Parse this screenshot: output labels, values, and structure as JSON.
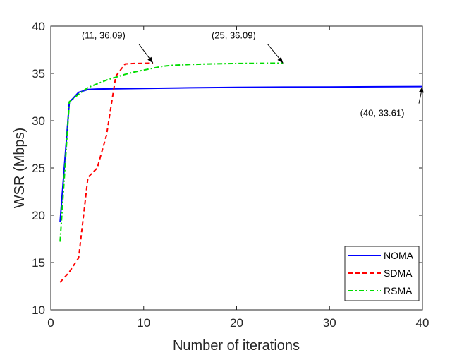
{
  "chart_data": {
    "type": "line",
    "title": "",
    "xlabel": "Number of iterations",
    "ylabel": "WSR (Mbps)",
    "xlim": [
      0,
      40
    ],
    "ylim": [
      10,
      40
    ],
    "xticks": [
      0,
      10,
      20,
      30,
      40
    ],
    "yticks": [
      10,
      15,
      20,
      25,
      30,
      35,
      40
    ],
    "grid": false,
    "legend_position": "bottom-right",
    "series": [
      {
        "name": "NOMA",
        "color": "#0000ff",
        "dash": "solid",
        "x": [
          1,
          2,
          3,
          4,
          5,
          10,
          15,
          20,
          25,
          30,
          35,
          40
        ],
        "y": [
          19.3,
          31.95,
          33.0,
          33.3,
          33.35,
          33.42,
          33.48,
          33.52,
          33.55,
          33.57,
          33.59,
          33.61
        ]
      },
      {
        "name": "SDMA",
        "color": "#ff0000",
        "dash": "dashed",
        "x": [
          1,
          2,
          3,
          4,
          5,
          6,
          7,
          8,
          9,
          10,
          11
        ],
        "y": [
          12.9,
          14.0,
          15.5,
          24.0,
          25.0,
          28.5,
          34.7,
          36.0,
          36.05,
          36.07,
          36.09
        ]
      },
      {
        "name": "RSMA",
        "color": "#00dd00",
        "dash": "dashdot",
        "x": [
          1,
          2,
          3,
          4,
          5,
          6,
          7,
          8,
          9,
          10,
          11,
          12,
          13,
          15,
          17,
          20,
          22,
          25
        ],
        "y": [
          17.2,
          32.0,
          32.8,
          33.5,
          33.9,
          34.3,
          34.6,
          34.9,
          35.15,
          35.35,
          35.55,
          35.75,
          35.85,
          35.95,
          36.0,
          36.05,
          36.07,
          36.09
        ]
      }
    ],
    "annotations": [
      {
        "text": "(11, 36.09)",
        "point": [
          11,
          36.09
        ]
      },
      {
        "text": "(25, 36.09)",
        "point": [
          25,
          36.09
        ]
      },
      {
        "text": "(40, 33.61)",
        "point": [
          40,
          33.61
        ]
      }
    ]
  }
}
